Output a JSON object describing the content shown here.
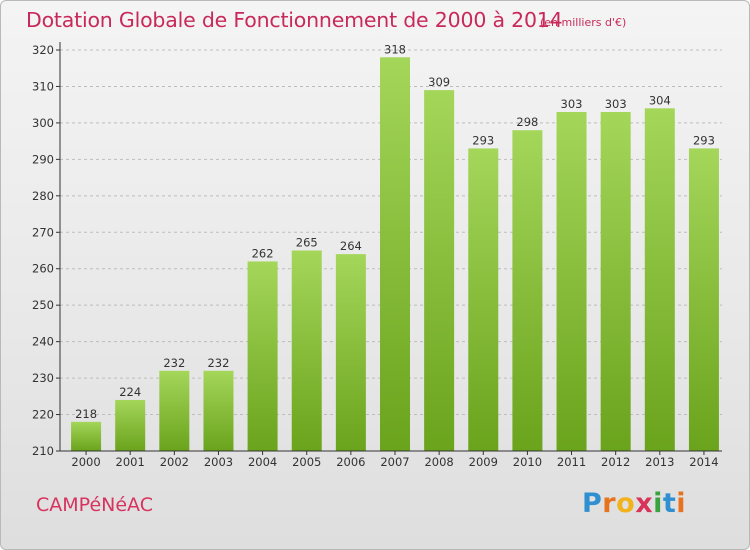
{
  "header": {
    "title": "Dotation Globale de Fonctionnement de 2000 à 2014",
    "unit": "(en milliers d'€)"
  },
  "footer": {
    "commune": "CAMPéNéAC",
    "logo_letters": [
      "P",
      "r",
      "o",
      "x",
      "i",
      "t",
      "i"
    ],
    "logo_colors": [
      "#2f8fd0",
      "#e8731f",
      "#f2b21b",
      "#d9335a",
      "#3aa33f",
      "#2f8fd0",
      "#e8731f"
    ]
  },
  "colors": {
    "title": "#c8295a",
    "bar_light": "#a4d65a",
    "bar_dark": "#6aa31c",
    "grid": "#bdbdbd",
    "axis": "#333333"
  },
  "chart_data": {
    "type": "bar",
    "categories": [
      "2000",
      "2001",
      "2002",
      "2003",
      "2004",
      "2005",
      "2006",
      "2007",
      "2008",
      "2009",
      "2010",
      "2011",
      "2012",
      "2013",
      "2014"
    ],
    "values": [
      218,
      224,
      232,
      232,
      262,
      265,
      264,
      318,
      309,
      293,
      298,
      303,
      303,
      304,
      293
    ],
    "ylim": [
      210,
      320
    ],
    "yticks": [
      210,
      220,
      230,
      240,
      250,
      260,
      270,
      280,
      290,
      300,
      310,
      320
    ],
    "grid": true,
    "grid_style": "dashed horizontal",
    "data_labels": true,
    "xlabel": "",
    "ylabel": ""
  }
}
